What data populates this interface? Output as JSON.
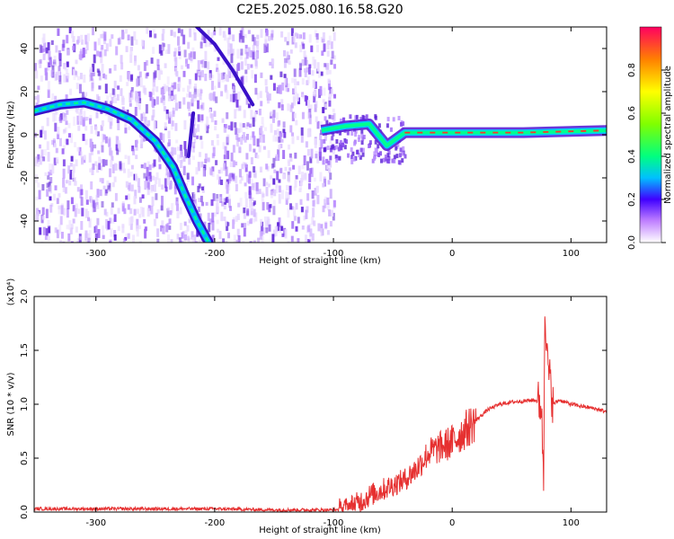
{
  "title": "C2E5.2025.080.16.58.G20",
  "colorbar": {
    "label": "Normalized spectral amplitude",
    "ticks": [
      "0.0",
      "0.2",
      "0.4",
      "0.6",
      "0.8"
    ],
    "tick_values": [
      0.0,
      0.2,
      0.4,
      0.6,
      0.8
    ],
    "range": [
      0,
      1
    ]
  },
  "chart_data": [
    {
      "type": "heatmap",
      "xlabel": "Height of straight line (km)",
      "ylabel": "Frequency (Hz)",
      "xlim": [
        -352,
        130
      ],
      "ylim": [
        -50,
        50
      ],
      "xticks": [
        -300,
        -200,
        -100,
        0,
        100
      ],
      "xtick_labels": [
        "-300",
        "-200",
        "-100",
        "0",
        "100"
      ],
      "yticks": [
        -40,
        -20,
        0,
        20,
        40
      ],
      "ytick_labels": [
        "-40",
        "-20",
        "0",
        "20",
        "40"
      ],
      "features": [
        {
          "kind": "curved_trace",
          "points": [
            [
              -352,
              11
            ],
            [
              -330,
              14
            ],
            [
              -310,
              15
            ],
            [
              -290,
              12
            ],
            [
              -270,
              7
            ],
            [
              -250,
              -3
            ],
            [
              -235,
              -15
            ],
            [
              -225,
              -28
            ],
            [
              -215,
              -40
            ],
            [
              -205,
              -50
            ]
          ]
        },
        {
          "kind": "diagonal_trace",
          "points": [
            [
              -215,
              50
            ],
            [
              -200,
              42
            ],
            [
              -185,
              30
            ],
            [
              -168,
              14
            ]
          ]
        },
        {
          "kind": "vertical_trace",
          "points": [
            [
              -218,
              10
            ],
            [
              -222,
              -10
            ]
          ]
        },
        {
          "kind": "horizontal_band",
          "points": [
            [
              -110,
              2
            ],
            [
              -90,
              4
            ],
            [
              -70,
              5
            ],
            [
              -55,
              -5
            ],
            [
              -40,
              1
            ],
            [
              0,
              1
            ],
            [
              60,
              1
            ],
            [
              130,
              2
            ]
          ]
        }
      ]
    },
    {
      "type": "line",
      "xlabel": "Height of straight line (km)",
      "ylabel": "SNR (10 * v/v)",
      "y_multiplier": "(x10⁴)",
      "xlim": [
        -352,
        130
      ],
      "ylim": [
        0,
        2.0
      ],
      "xticks": [
        -300,
        -200,
        -100,
        0,
        100
      ],
      "xtick_labels": [
        "-300",
        "-200",
        "-100",
        "0",
        "100"
      ],
      "yticks": [
        0.0,
        0.5,
        1.0,
        1.5,
        2.0
      ],
      "ytick_labels": [
        "0.0",
        "0.5",
        "1.0",
        "1.5",
        "2.0"
      ],
      "series": [
        {
          "color": "#e63030",
          "x": [
            -352,
            -300,
            -250,
            -200,
            -150,
            -100,
            -90,
            -80,
            -70,
            -60,
            -50,
            -40,
            -30,
            -20,
            -10,
            0,
            10,
            20,
            30,
            40,
            50,
            60,
            70,
            75,
            77,
            78,
            80,
            85,
            90,
            100,
            110,
            120,
            130
          ],
          "y": [
            0.03,
            0.03,
            0.03,
            0.03,
            0.02,
            0.02,
            0.03,
            0.08,
            0.15,
            0.2,
            0.25,
            0.3,
            0.4,
            0.55,
            0.6,
            0.65,
            0.75,
            0.85,
            0.95,
            1.0,
            1.02,
            1.03,
            1.04,
            1.0,
            0.3,
            2.0,
            1.4,
            1.0,
            1.04,
            1.0,
            0.98,
            0.96,
            0.93
          ]
        }
      ]
    }
  ]
}
